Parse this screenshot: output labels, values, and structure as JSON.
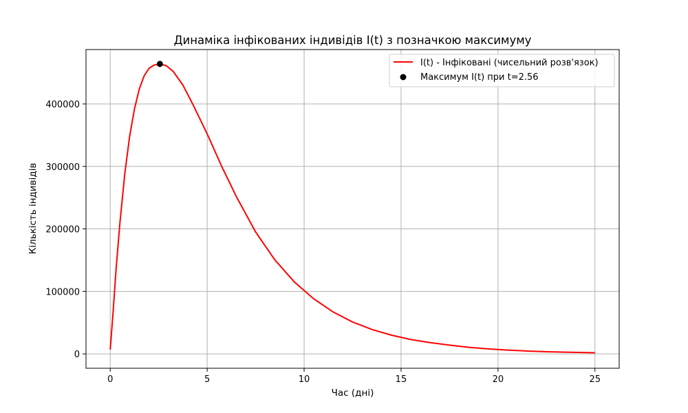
{
  "chart_data": {
    "type": "line",
    "title": "Динаміка інфікованих індивідів I(t) з позначкою максимуму",
    "xlabel": "Час (дні)",
    "ylabel": "Кількість індивідів",
    "xlim": [
      -1.25,
      26.25
    ],
    "ylim": [
      -23000,
      487000
    ],
    "grid": true,
    "legend_position": "top-right",
    "x_ticks": [
      0,
      5,
      10,
      15,
      20,
      25
    ],
    "y_ticks": [
      0,
      100000,
      200000,
      300000,
      400000
    ],
    "x_tick_labels": [
      "0",
      "5",
      "10",
      "15",
      "20",
      "25"
    ],
    "y_tick_labels": [
      "0",
      "100000",
      "200000",
      "300000",
      "400000"
    ],
    "series": [
      {
        "name": "I(t) - Інфіковані (чисельний розв'язок)",
        "color": "#ff0000",
        "style": "line",
        "x": [
          0,
          0.15,
          0.3,
          0.5,
          0.75,
          1.0,
          1.25,
          1.5,
          1.75,
          2.0,
          2.25,
          2.56,
          2.9,
          3.25,
          3.75,
          4.25,
          5.0,
          5.75,
          6.5,
          7.5,
          8.5,
          9.5,
          10.5,
          11.5,
          12.5,
          13.5,
          14.5,
          15.5,
          16.5,
          17.5,
          18.5,
          19.5,
          20.5,
          21.5,
          22.5,
          23.5,
          25.0
        ],
        "y": [
          7000,
          68000,
          135000,
          210000,
          288000,
          348000,
          392000,
          424000,
          445000,
          457000,
          462000,
          464000,
          461000,
          452000,
          430000,
          400000,
          352000,
          300000,
          252000,
          195000,
          150000,
          115000,
          88000,
          67000,
          51000,
          39000,
          30000,
          23000,
          18000,
          14000,
          10500,
          8000,
          6000,
          4600,
          3500,
          2700,
          1800
        ]
      }
    ],
    "marker": {
      "label": "Максимум I(t) при t=2.56",
      "x": 2.56,
      "y": 464000,
      "color": "#000000"
    }
  }
}
